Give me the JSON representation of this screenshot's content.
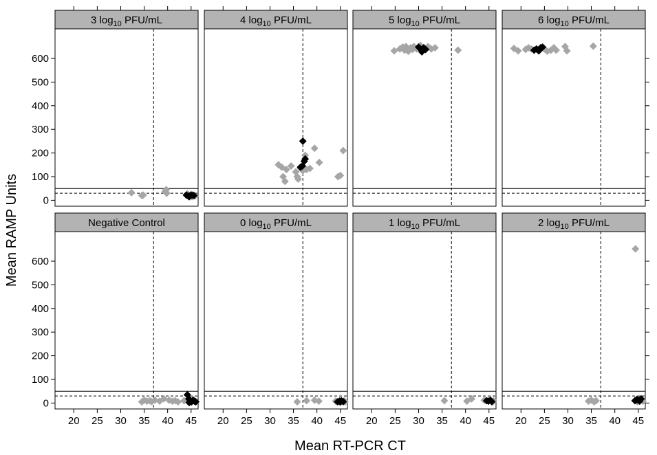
{
  "chart_data": {
    "type": "scatter",
    "layout": "2x4 small multiples",
    "xlabel": "Mean RT-PCR CT",
    "ylabel": "Mean RAMP Units",
    "xlim": [
      16,
      46.5
    ],
    "ylim": [
      -25,
      725
    ],
    "x_ticks": [
      20,
      25,
      30,
      35,
      40,
      45
    ],
    "y_ticks": [
      0,
      100,
      200,
      300,
      400,
      500,
      600
    ],
    "reference_lines": {
      "horizontal_solid": 50,
      "horizontal_dashed": 30,
      "vertical_dashed": 37
    },
    "marker": "diamond",
    "colors": {
      "grey_series": "#a6a6a6",
      "black_series": "#000000",
      "strip": "#b3b3b3"
    },
    "panels": [
      {
        "title_base": "3 log",
        "title_sub": "10",
        "title_rest": " PFU/mL",
        "grey": [
          [
            32.3,
            32
          ],
          [
            34.5,
            20
          ],
          [
            34.8,
            22
          ],
          [
            39.5,
            38
          ],
          [
            39.7,
            45
          ],
          [
            39.8,
            30
          ],
          [
            44.2,
            28
          ],
          [
            44.5,
            20
          ],
          [
            45.0,
            25
          ],
          [
            45.5,
            22
          ],
          [
            45.8,
            18
          ],
          [
            45.2,
            15
          ]
        ],
        "black": [
          [
            44.0,
            22
          ],
          [
            44.4,
            18
          ],
          [
            44.8,
            20
          ],
          [
            45.2,
            22
          ],
          [
            45.6,
            20
          ],
          [
            44.6,
            15
          ]
        ]
      },
      {
        "title_base": "4 log",
        "title_sub": "10",
        "title_rest": " PFU/mL",
        "grey": [
          [
            31.8,
            150
          ],
          [
            32.5,
            140
          ],
          [
            32.8,
            100
          ],
          [
            33.2,
            80
          ],
          [
            33.5,
            130
          ],
          [
            34.5,
            145
          ],
          [
            35.5,
            120
          ],
          [
            35.8,
            100
          ],
          [
            36.0,
            90
          ],
          [
            36.5,
            135
          ],
          [
            37.0,
            125
          ],
          [
            37.5,
            190
          ],
          [
            37.8,
            130
          ],
          [
            38.5,
            135
          ],
          [
            39.5,
            220
          ],
          [
            40.5,
            160
          ],
          [
            44.5,
            100
          ],
          [
            45.0,
            105
          ],
          [
            45.6,
            210
          ]
        ],
        "black": [
          [
            36.5,
            140
          ],
          [
            36.9,
            145
          ],
          [
            37.0,
            250
          ],
          [
            37.3,
            165
          ],
          [
            37.5,
            175
          ]
        ]
      },
      {
        "title_base": "5 log",
        "title_sub": "10",
        "title_rest": " PFU/mL",
        "grey": [
          [
            24.8,
            632
          ],
          [
            26.0,
            640
          ],
          [
            26.6,
            648
          ],
          [
            27.0,
            635
          ],
          [
            27.3,
            650
          ],
          [
            27.8,
            630
          ],
          [
            28.3,
            645
          ],
          [
            28.7,
            638
          ],
          [
            29.0,
            650
          ],
          [
            29.6,
            640
          ],
          [
            30.4,
            655
          ],
          [
            31.0,
            645
          ],
          [
            31.4,
            638
          ],
          [
            32.0,
            650
          ],
          [
            32.7,
            640
          ],
          [
            33.5,
            645
          ],
          [
            38.4,
            635
          ]
        ],
        "black": [
          [
            30.0,
            648
          ],
          [
            30.4,
            640
          ],
          [
            30.7,
            628
          ],
          [
            31.1,
            645
          ],
          [
            31.5,
            638
          ]
        ]
      },
      {
        "title_base": "6 log",
        "title_sub": "10",
        "title_rest": " PFU/mL",
        "grey": [
          [
            18.5,
            642
          ],
          [
            19.4,
            632
          ],
          [
            21.0,
            638
          ],
          [
            21.6,
            645
          ],
          [
            22.2,
            640
          ],
          [
            25.0,
            640
          ],
          [
            25.6,
            630
          ],
          [
            26.4,
            635
          ],
          [
            27.0,
            645
          ],
          [
            27.5,
            635
          ],
          [
            29.4,
            650
          ],
          [
            29.8,
            632
          ],
          [
            35.4,
            652
          ]
        ],
        "black": [
          [
            22.8,
            635
          ],
          [
            23.3,
            640
          ],
          [
            23.8,
            632
          ],
          [
            24.2,
            645
          ],
          [
            24.6,
            648
          ],
          [
            24.0,
            638
          ]
        ]
      },
      {
        "title_base": "Negative Control",
        "title_sub": "",
        "title_rest": "",
        "grey": [
          [
            34.5,
            5
          ],
          [
            35.0,
            12
          ],
          [
            35.6,
            8
          ],
          [
            36.2,
            10
          ],
          [
            36.6,
            6
          ],
          [
            37.3,
            12
          ],
          [
            38.3,
            8
          ],
          [
            39.2,
            18
          ],
          [
            40.3,
            12
          ],
          [
            41.0,
            8
          ],
          [
            41.6,
            10
          ],
          [
            42.2,
            5
          ],
          [
            43.5,
            10
          ],
          [
            46.0,
            5
          ],
          [
            45.6,
            12
          ]
        ],
        "black": [
          [
            44.2,
            35
          ],
          [
            44.5,
            18
          ],
          [
            44.8,
            10
          ],
          [
            45.1,
            5
          ],
          [
            45.4,
            12
          ],
          [
            45.7,
            8
          ],
          [
            46.0,
            5
          ],
          [
            44.6,
            2
          ]
        ]
      },
      {
        "title_base": "0 log",
        "title_sub": "10",
        "title_rest": " PFU/mL",
        "grey": [
          [
            35.8,
            5
          ],
          [
            37.8,
            10
          ],
          [
            39.5,
            12
          ],
          [
            40.4,
            8
          ],
          [
            44.0,
            8
          ],
          [
            46.0,
            5
          ],
          [
            45.8,
            10
          ]
        ],
        "black": [
          [
            44.4,
            5
          ],
          [
            44.8,
            8
          ],
          [
            45.2,
            10
          ],
          [
            45.6,
            6
          ],
          [
            45.0,
            4
          ]
        ]
      },
      {
        "title_base": "1 log",
        "title_sub": "10",
        "title_rest": " PFU/mL",
        "grey": [
          [
            35.5,
            10
          ],
          [
            40.3,
            8
          ],
          [
            41.3,
            18
          ],
          [
            44.0,
            12
          ],
          [
            45.8,
            5
          ],
          [
            46.0,
            10
          ]
        ],
        "black": [
          [
            44.5,
            10
          ],
          [
            44.9,
            8
          ],
          [
            45.3,
            12
          ],
          [
            45.6,
            6
          ]
        ]
      },
      {
        "title_base": "2 log",
        "title_sub": "10",
        "title_rest": " PFU/mL",
        "grey": [
          [
            34.4,
            8
          ],
          [
            35.0,
            12
          ],
          [
            35.6,
            5
          ],
          [
            36.0,
            10
          ],
          [
            44.4,
            652
          ],
          [
            44.8,
            5
          ],
          [
            46.0,
            8
          ]
        ],
        "black": [
          [
            44.3,
            10
          ],
          [
            44.7,
            15
          ],
          [
            45.0,
            12
          ],
          [
            45.6,
            18
          ],
          [
            45.3,
            8
          ]
        ]
      }
    ]
  }
}
